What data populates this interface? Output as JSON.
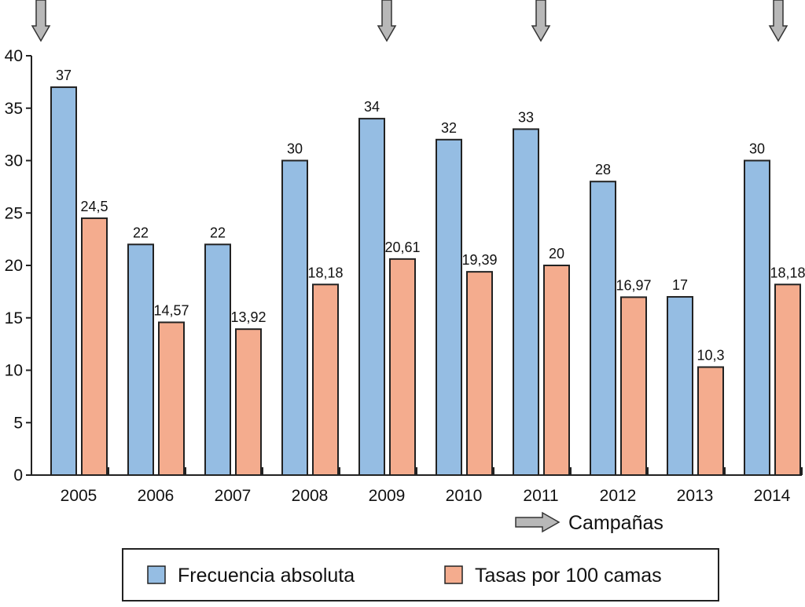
{
  "chart_data": {
    "type": "bar",
    "categories": [
      "2005",
      "2006",
      "2007",
      "2008",
      "2009",
      "2010",
      "2011",
      "2012",
      "2013",
      "2014"
    ],
    "series": [
      {
        "name": "Frecuencia absoluta",
        "color": "#95bde3",
        "values": [
          37,
          22,
          22,
          30,
          34,
          32,
          33,
          28,
          17,
          30
        ],
        "labels": [
          "37",
          "22",
          "22",
          "30",
          "34",
          "32",
          "33",
          "28",
          "17",
          "30"
        ]
      },
      {
        "name": "Tasas por 100 camas",
        "color": "#f4ac8e",
        "values": [
          24.5,
          14.57,
          13.92,
          18.18,
          20.61,
          19.39,
          20,
          16.97,
          10.3,
          18.18
        ],
        "labels": [
          "24,5",
          "14,57",
          "13,92",
          "18,18",
          "20,61",
          "19,39",
          "20",
          "16,97",
          "10,3",
          "18,18"
        ]
      }
    ],
    "ylim": [
      0,
      40
    ],
    "yticks": [
      0,
      5,
      10,
      15,
      20,
      25,
      30,
      35,
      40
    ],
    "xlabel": "Campañas",
    "ylabel": "",
    "arrow_marked_years": [
      "2005",
      "2009",
      "2011",
      "2014"
    ],
    "legend": "bottom"
  }
}
